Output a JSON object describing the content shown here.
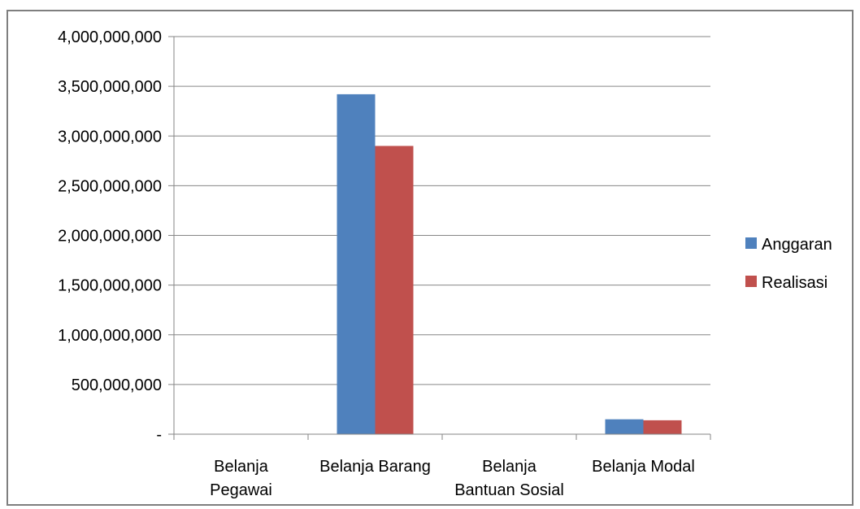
{
  "chart_data": {
    "type": "bar",
    "categories": [
      [
        "Belanja",
        "Pegawai"
      ],
      [
        "Belanja Barang"
      ],
      [
        "Belanja",
        "Bantuan Sosial"
      ],
      [
        "Belanja Modal"
      ]
    ],
    "series": [
      {
        "name": "Anggaran",
        "color": "#4f81bd",
        "values": [
          0,
          3420000000,
          0,
          150000000
        ]
      },
      {
        "name": "Realisasi",
        "color": "#c0504d",
        "values": [
          0,
          2900000000,
          0,
          140000000
        ]
      }
    ],
    "y_ticks": [
      {
        "value": 0,
        "label": "-"
      },
      {
        "value": 500000000,
        "label": "500,000,000"
      },
      {
        "value": 1000000000,
        "label": "1,000,000,000"
      },
      {
        "value": 1500000000,
        "label": "1,500,000,000"
      },
      {
        "value": 2000000000,
        "label": "2,000,000,000"
      },
      {
        "value": 2500000000,
        "label": "2,500,000,000"
      },
      {
        "value": 3000000000,
        "label": "3,000,000,000"
      },
      {
        "value": 3500000000,
        "label": "3,500,000,000"
      },
      {
        "value": 4000000000,
        "label": "4,000,000,000"
      }
    ],
    "ylim": [
      0,
      4000000000
    ],
    "grid": true,
    "legend_position": "right",
    "title": "",
    "xlabel": "",
    "ylabel": ""
  }
}
